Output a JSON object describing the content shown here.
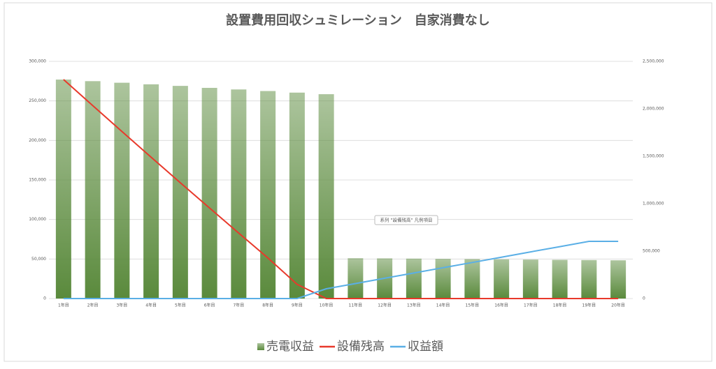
{
  "chart_data": {
    "type": "combo",
    "title": "設置費用回収シュミレーション　自家消費なし",
    "tooltip": "系列 \"設備残高\" 凡例項目",
    "categories": [
      "1年目",
      "2年目",
      "3年目",
      "4年目",
      "5年目",
      "6年目",
      "7年目",
      "8年目",
      "9年目",
      "10年目",
      "11年目",
      "12年目",
      "13年目",
      "14年目",
      "15年目",
      "16年目",
      "17年目",
      "18年目",
      "19年目",
      "20年目"
    ],
    "series": [
      {
        "name": "売電収益",
        "type": "bar",
        "axis": "y",
        "color": "#5a8a3c",
        "values": [
          277000,
          275000,
          273000,
          271000,
          269000,
          266500,
          264500,
          262500,
          260500,
          258500,
          51000,
          50800,
          50500,
          50200,
          49900,
          49600,
          49300,
          49000,
          48700,
          48400
        ]
      },
      {
        "name": "設備残高",
        "type": "line",
        "axis": "y2",
        "color": "#e8392b",
        "values": [
          2309000,
          2034000,
          1761000,
          1490000,
          1221000,
          955000,
          690000,
          428000,
          150000,
          0,
          0,
          0,
          0,
          0,
          0,
          0,
          0,
          0,
          0,
          0
        ]
      },
      {
        "name": "収益額",
        "type": "line",
        "axis": "y2",
        "color": "#5aafe6",
        "values": [
          0,
          0,
          0,
          0,
          0,
          0,
          0,
          0,
          0,
          103000,
          158000,
          214000,
          269000,
          325000,
          380000,
          436000,
          492000,
          547000,
          603000,
          603000
        ]
      }
    ],
    "ylim": [
      0,
      300000
    ],
    "yticks": [
      0,
      {
        "value": 50000,
        "label": "50,000"
      },
      {
        "value": 100000,
        "label": "100,000"
      },
      {
        "value": 150000,
        "label": "150,000"
      },
      {
        "value": 200000,
        "label": "200,000"
      },
      {
        "value": 250000,
        "label": "250,000"
      },
      {
        "value": 300000,
        "label": "300,000"
      }
    ],
    "y2lim": [
      0,
      2500000
    ],
    "y2ticks": [
      0,
      {
        "value": 500000,
        "label": "500,000"
      },
      {
        "value": 1000000,
        "label": "1,000,000"
      },
      {
        "value": 1500000,
        "label": "1,500,000"
      },
      {
        "value": 2000000,
        "label": "2,000,000"
      },
      {
        "value": 2500000,
        "label": "2,500,000"
      }
    ],
    "grid": true,
    "legend": "bottom"
  }
}
